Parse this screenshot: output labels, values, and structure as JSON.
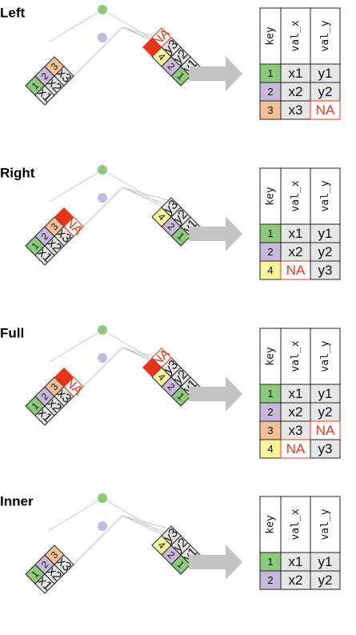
{
  "colors": {
    "key1": "#8cc97a",
    "key2": "#c7b9dc",
    "key3": "#f5c095",
    "key4": "#fbf59b",
    "grey": "#e6e6e6",
    "na": "#e8341c",
    "arrow": "#c3c3c3",
    "grid": "#c9c9c9"
  },
  "panels": [
    {
      "title": "Left",
      "x_rows": [
        {
          "key": "1",
          "val": "x1"
        },
        {
          "key": "2",
          "val": "x2"
        },
        {
          "key": "3",
          "val": "x3"
        }
      ],
      "y_rows": [
        {
          "key": "1",
          "val": "y1"
        },
        {
          "key": "2",
          "val": "y2"
        },
        {
          "key": "4",
          "val": "y3"
        }
      ],
      "na_y": "NA",
      "result": {
        "headers": [
          "key",
          "val_x",
          "val_y"
        ],
        "rows": [
          [
            "1",
            "x1",
            "y1"
          ],
          [
            "2",
            "x2",
            "y2"
          ],
          [
            "3",
            "x3",
            "NA"
          ]
        ]
      }
    },
    {
      "title": "Right",
      "x_rows": [
        {
          "key": "1",
          "val": "x1"
        },
        {
          "key": "2",
          "val": "x2"
        },
        {
          "key": "3",
          "val": "x3"
        }
      ],
      "y_rows": [
        {
          "key": "1",
          "val": "y1"
        },
        {
          "key": "2",
          "val": "y2"
        },
        {
          "key": "4",
          "val": "y3"
        }
      ],
      "na_x": "NA",
      "result": {
        "headers": [
          "key",
          "val_x",
          "val_y"
        ],
        "rows": [
          [
            "1",
            "x1",
            "y1"
          ],
          [
            "2",
            "x2",
            "y2"
          ],
          [
            "4",
            "NA",
            "y3"
          ]
        ]
      }
    },
    {
      "title": "Full",
      "x_rows": [
        {
          "key": "1",
          "val": "x1"
        },
        {
          "key": "2",
          "val": "x2"
        },
        {
          "key": "3",
          "val": "x3"
        }
      ],
      "y_rows": [
        {
          "key": "1",
          "val": "y1"
        },
        {
          "key": "2",
          "val": "y2"
        },
        {
          "key": "4",
          "val": "y3"
        }
      ],
      "na_x": "NA",
      "na_y": "NA",
      "result": {
        "headers": [
          "key",
          "val_x",
          "val_y"
        ],
        "rows": [
          [
            "1",
            "x1",
            "y1"
          ],
          [
            "2",
            "x2",
            "y2"
          ],
          [
            "3",
            "x3",
            "NA"
          ],
          [
            "4",
            "NA",
            "y3"
          ]
        ]
      }
    },
    {
      "title": "Inner",
      "x_rows": [
        {
          "key": "1",
          "val": "x1"
        },
        {
          "key": "2",
          "val": "x2"
        },
        {
          "key": "3",
          "val": "x3"
        }
      ],
      "y_rows": [
        {
          "key": "1",
          "val": "y1"
        },
        {
          "key": "2",
          "val": "y2"
        },
        {
          "key": "4",
          "val": "y3"
        }
      ],
      "result": {
        "headers": [
          "key",
          "val_x",
          "val_y"
        ],
        "rows": [
          [
            "1",
            "x1",
            "y1"
          ],
          [
            "2",
            "x2",
            "y2"
          ]
        ]
      }
    }
  ]
}
